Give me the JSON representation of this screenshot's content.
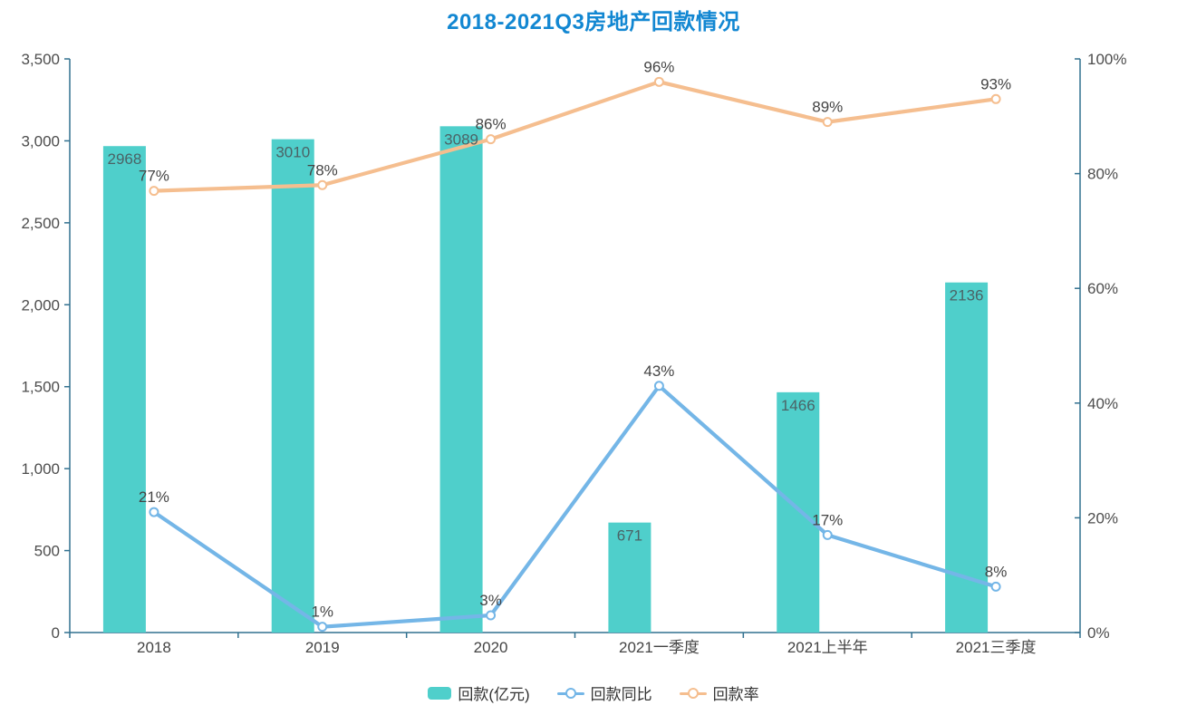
{
  "title": "2018-2021Q3房地产回款情况",
  "colors": {
    "title": "#1287d2",
    "axis_line": "#31708f",
    "axis_label": "#4d4d4d",
    "bar_fill": "#4fcfcb",
    "bar_label": "#4b6366",
    "line_blue": "#74b6e7",
    "line_orange": "#f5be8f",
    "point_label": "#444444",
    "legend_text": "#333333"
  },
  "chart_data": {
    "type": "bar",
    "subtype": "combo-bar-line",
    "title": "2018-2021Q3房地产回款情况",
    "categories": [
      "2018",
      "2019",
      "2020",
      "2021一季度",
      "2021上半年",
      "2021三季度"
    ],
    "series": [
      {
        "name": "回款(亿元)",
        "kind": "bar",
        "axis": "left",
        "unit": "",
        "color": "#4fcfcb",
        "values": [
          2968,
          3010,
          3089,
          671,
          1466,
          2136
        ]
      },
      {
        "name": "回款同比",
        "kind": "line",
        "axis": "right",
        "unit": "%",
        "color": "#74b6e7",
        "values": [
          21,
          1,
          3,
          43,
          17,
          8
        ]
      },
      {
        "name": "回款率",
        "kind": "line",
        "axis": "right",
        "unit": "%",
        "color": "#f5be8f",
        "values": [
          77,
          78,
          86,
          96,
          89,
          93
        ]
      }
    ],
    "left_axis": {
      "min": 0,
      "max": 3500,
      "step": 500,
      "tick_labels": [
        "0",
        "500",
        "1,000",
        "1,500",
        "2,000",
        "2,500",
        "3,000",
        "3,500"
      ]
    },
    "right_axis": {
      "min": 0,
      "max": 100,
      "step": 20,
      "tick_labels": [
        "0%",
        "20%",
        "40%",
        "60%",
        "80%",
        "100%"
      ]
    },
    "grid": false,
    "legend_position": "bottom",
    "data_labels_shown": true
  }
}
